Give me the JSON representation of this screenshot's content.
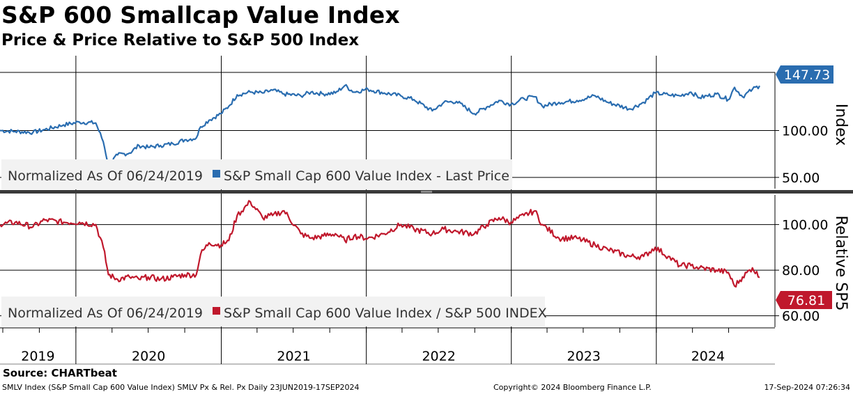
{
  "header": {
    "title": "S&P 600 Smallcap Value Index",
    "subtitle": "Price & Price Relative to S&P 500 Index"
  },
  "footer": {
    "source": "Source: CHARTbeat",
    "left": "SMLV Index (S&P Small Cap 600 Value Index) SMLV Px & Rel. Px  Daily 23JUN2019-17SEP2024",
    "middle": "Copyright© 2024 Bloomberg Finance L.P.",
    "right": "17-Sep-2024 07:26:34"
  },
  "colors": {
    "price_line": "#2a6db0",
    "relative_line": "#c0182c",
    "legend_bg": "#f2f2f2",
    "grid": "#000000"
  },
  "chart_data": [
    {
      "type": "line",
      "panel": "top",
      "axis_label": "Index",
      "legend_note": "Normalized As Of 06/24/2019",
      "y_ticks": [
        50,
        100
      ],
      "y_tick_labels": [
        "50.00",
        "100.00"
      ],
      "last_value_label": "147.73",
      "ylim": [
        38,
        162
      ],
      "grid": true,
      "x_categories": [
        "2019",
        "2020",
        "2021",
        "2022",
        "2023",
        "2024"
      ],
      "series": [
        {
          "name": "S&P Small Cap 600 Value Index - Last Price",
          "color": "#2a6db0",
          "x": [
            "2019-06-24",
            "2019-08-01",
            "2019-09-15",
            "2019-10-15",
            "2019-12-01",
            "2020-01-10",
            "2020-02-20",
            "2020-03-10",
            "2020-03-23",
            "2020-04-15",
            "2020-05-15",
            "2020-06-08",
            "2020-07-01",
            "2020-08-01",
            "2020-09-01",
            "2020-10-01",
            "2020-10-30",
            "2020-11-10",
            "2020-12-01",
            "2020-12-31",
            "2021-01-20",
            "2021-02-10",
            "2021-03-15",
            "2021-04-15",
            "2021-05-10",
            "2021-06-08",
            "2021-07-20",
            "2021-08-15",
            "2021-09-15",
            "2021-10-15",
            "2021-11-08",
            "2021-12-01",
            "2022-01-05",
            "2022-02-15",
            "2022-03-29",
            "2022-05-01",
            "2022-06-16",
            "2022-07-15",
            "2022-08-16",
            "2022-09-30",
            "2022-10-31",
            "2022-12-01",
            "2022-12-31",
            "2023-02-02",
            "2023-03-01",
            "2023-03-20",
            "2023-05-01",
            "2023-06-15",
            "2023-07-31",
            "2023-09-01",
            "2023-10-27",
            "2023-11-30",
            "2023-12-29",
            "2024-01-31",
            "2024-02-29",
            "2024-03-28",
            "2024-04-19",
            "2024-05-31",
            "2024-06-30",
            "2024-07-16",
            "2024-08-05",
            "2024-08-30",
            "2024-09-17"
          ],
          "y": [
            100,
            99,
            98,
            101,
            106,
            109,
            108,
            88,
            63,
            74,
            76,
            84,
            82,
            84,
            86,
            90,
            92,
            104,
            111,
            118,
            126,
            138,
            141,
            140,
            143,
            139,
            137,
            141,
            139,
            140,
            148,
            141,
            144,
            140,
            137,
            133,
            121,
            130,
            131,
            118,
            125,
            132,
            128,
            134,
            136,
            126,
            130,
            132,
            137,
            130,
            123,
            130,
            140,
            138,
            137,
            141,
            135,
            139,
            133,
            146,
            136,
            144,
            147.73
          ]
        }
      ]
    },
    {
      "type": "line",
      "panel": "bottom",
      "axis_label": "Relative SP5",
      "legend_note": "Normalized As Of 06/24/2019",
      "y_ticks": [
        60,
        80,
        100
      ],
      "y_tick_labels": [
        "60.00",
        "80.00",
        "100.00"
      ],
      "last_value_label": "76.81",
      "ylim": [
        55,
        113
      ],
      "grid": true,
      "x_categories": [
        "2019",
        "2020",
        "2021",
        "2022",
        "2023",
        "2024"
      ],
      "series": [
        {
          "name": "S&P Small Cap 600 Value Index / S&P 500 INDEX",
          "color": "#c0182c",
          "x": [
            "2019-06-24",
            "2019-08-01",
            "2019-09-15",
            "2019-10-15",
            "2019-12-01",
            "2020-01-10",
            "2020-02-20",
            "2020-03-10",
            "2020-03-23",
            "2020-04-15",
            "2020-05-15",
            "2020-06-08",
            "2020-07-01",
            "2020-08-01",
            "2020-09-01",
            "2020-10-01",
            "2020-10-30",
            "2020-11-10",
            "2020-12-01",
            "2020-12-31",
            "2021-01-20",
            "2021-02-10",
            "2021-03-15",
            "2021-04-15",
            "2021-05-10",
            "2021-06-08",
            "2021-07-20",
            "2021-08-15",
            "2021-09-15",
            "2021-10-15",
            "2021-11-08",
            "2021-12-01",
            "2022-01-05",
            "2022-02-15",
            "2022-03-29",
            "2022-05-01",
            "2022-06-16",
            "2022-07-15",
            "2022-08-16",
            "2022-09-30",
            "2022-10-31",
            "2022-12-01",
            "2022-12-31",
            "2023-02-02",
            "2023-03-01",
            "2023-03-20",
            "2023-05-01",
            "2023-06-15",
            "2023-07-31",
            "2023-09-01",
            "2023-10-27",
            "2023-11-30",
            "2023-12-29",
            "2024-01-31",
            "2024-02-29",
            "2024-03-28",
            "2024-04-19",
            "2024-05-31",
            "2024-06-30",
            "2024-07-16",
            "2024-08-05",
            "2024-08-30",
            "2024-09-17"
          ],
          "y": [
            100,
            101,
            99,
            102,
            101,
            101,
            100,
            90,
            78,
            76,
            77,
            76,
            77,
            76,
            77,
            78,
            78,
            87,
            92,
            91,
            93,
            104,
            110,
            103,
            104,
            106,
            96,
            94,
            95,
            96,
            93,
            95,
            94,
            96,
            100,
            98,
            96,
            98,
            97,
            96,
            100,
            103,
            101,
            104,
            106,
            100,
            94,
            94,
            91,
            89,
            86,
            86,
            90,
            86,
            82,
            82,
            81,
            80,
            79,
            73,
            77,
            81,
            76.81
          ]
        }
      ]
    }
  ]
}
